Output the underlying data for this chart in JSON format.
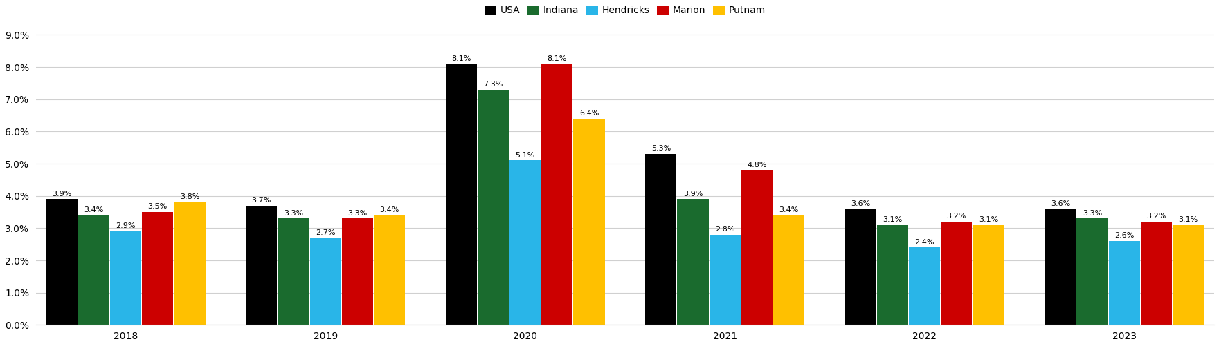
{
  "years": [
    "2018",
    "2019",
    "2020",
    "2021",
    "2022",
    "2023"
  ],
  "series": {
    "USA": [
      3.9,
      3.7,
      8.1,
      5.3,
      3.6,
      3.6
    ],
    "Indiana": [
      3.4,
      3.3,
      7.3,
      3.9,
      3.1,
      3.3
    ],
    "Hendricks": [
      2.9,
      2.7,
      5.1,
      2.8,
      2.4,
      2.6
    ],
    "Marion": [
      3.5,
      3.3,
      8.1,
      4.8,
      3.2,
      3.2
    ],
    "Putnam": [
      3.8,
      3.4,
      6.4,
      3.4,
      3.1,
      3.1
    ]
  },
  "colors": {
    "USA": "#000000",
    "Indiana": "#1a6b2e",
    "Hendricks": "#29b5e8",
    "Marion": "#cc0000",
    "Putnam": "#ffc000"
  },
  "ylim": [
    0,
    9.5
  ],
  "yticks": [
    0.0,
    1.0,
    2.0,
    3.0,
    4.0,
    5.0,
    6.0,
    7.0,
    8.0,
    9.0
  ],
  "bar_width": 0.16,
  "legend_labels": [
    "USA",
    "Indiana",
    "Hendricks",
    "Marion",
    "Putnam"
  ],
  "label_fontsize": 8.0,
  "tick_fontsize": 10,
  "legend_fontsize": 10,
  "figsize": [
    17.61,
    5.01
  ],
  "dpi": 100
}
